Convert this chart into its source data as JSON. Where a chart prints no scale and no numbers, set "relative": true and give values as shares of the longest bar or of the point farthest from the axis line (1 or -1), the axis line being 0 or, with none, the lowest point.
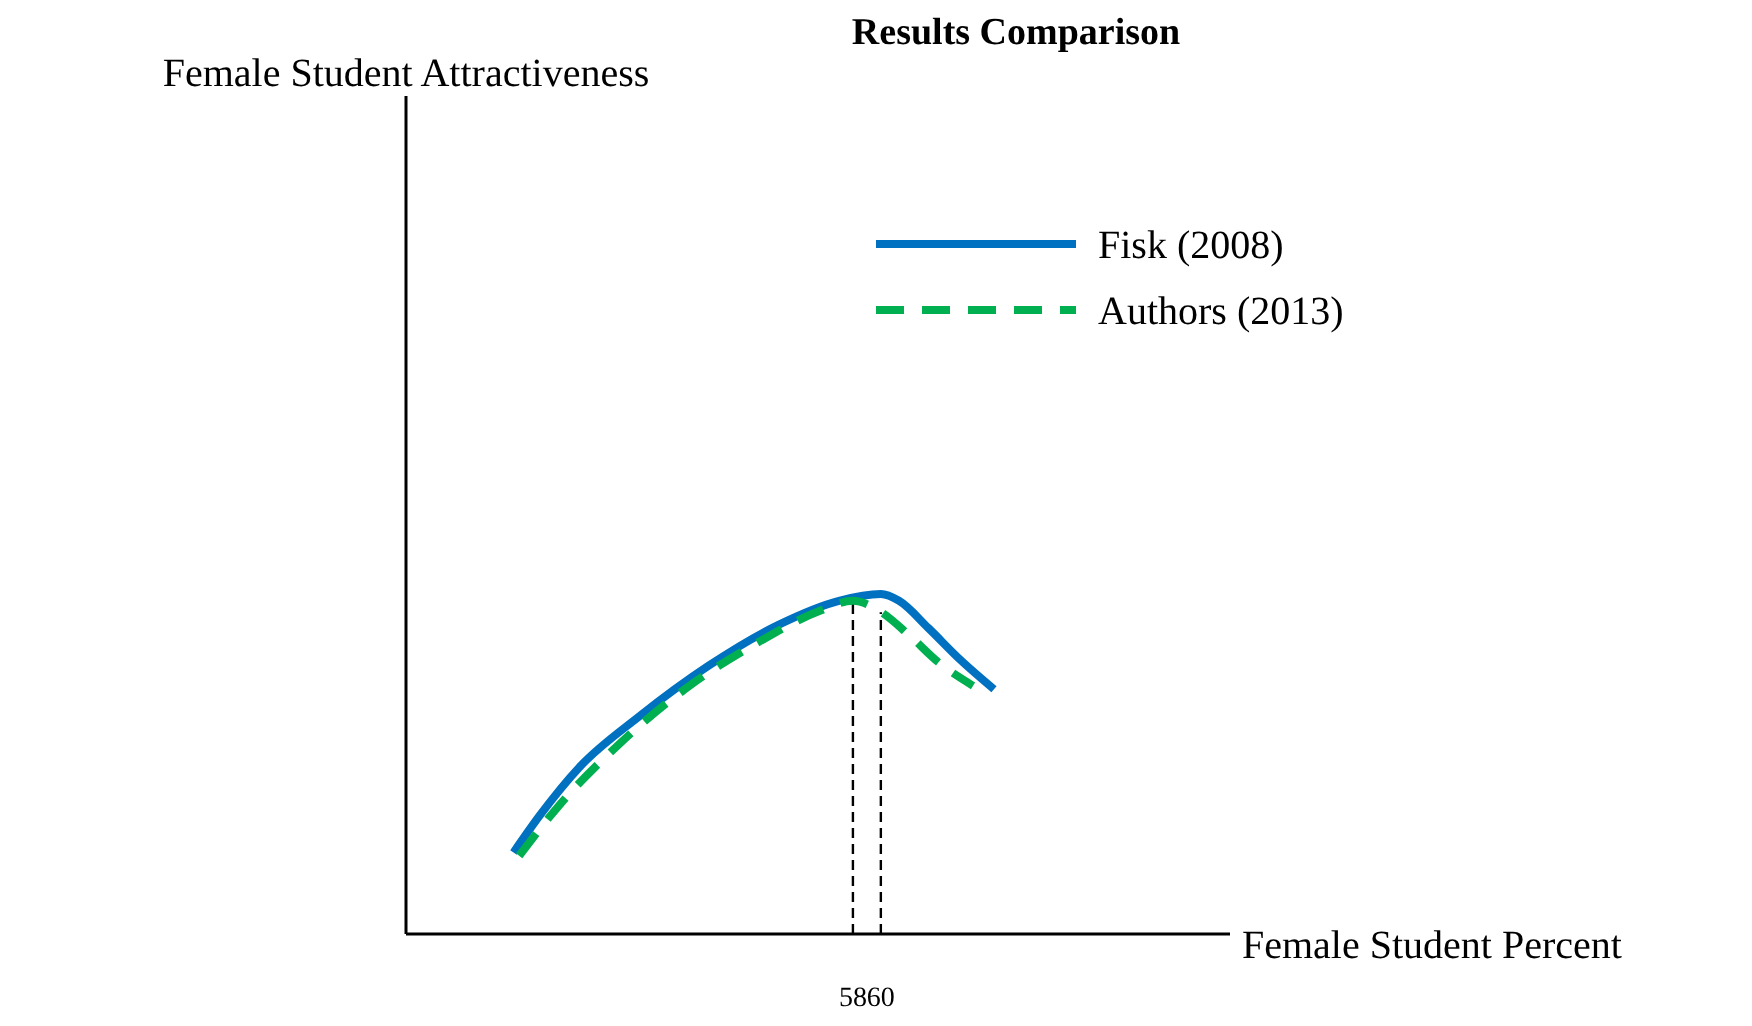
{
  "chart_data": {
    "type": "line",
    "title": "Results Comparison",
    "xlabel": "Female Student Percent",
    "annotations": [
      "Female Student Attractiveness"
    ],
    "relative": true,
    "xlim": [
      26,
      85
    ],
    "xticks": [
      58,
      60
    ],
    "legend": "top right",
    "grid": false,
    "series": [
      {
        "name": "Fisk (2008)",
        "color": "#0070c0",
        "line_style": "solid",
        "x": [
          33.7,
          35.6,
          38.4,
          42.7,
          47.7,
          52.7,
          57,
          60,
          61.3,
          63.4,
          65.6,
          68.1
        ],
        "values": [
          0.24,
          0.35,
          0.49,
          0.64,
          0.79,
          0.91,
          0.98,
          1.0,
          0.98,
          0.9,
          0.81,
          0.72
        ]
      },
      {
        "name": "Authors (2013)",
        "color": "#00b050",
        "line_style": "dashed",
        "x": [
          34.1,
          37,
          41.3,
          46.3,
          51.3,
          55.6,
          58,
          59.9,
          62,
          64.1,
          66.6
        ],
        "values": [
          0.23,
          0.38,
          0.56,
          0.73,
          0.86,
          0.95,
          0.98,
          0.95,
          0.88,
          0.8,
          0.73
        ]
      }
    ],
    "ref_lines": [
      {
        "axis": "x",
        "value": 58,
        "label": null,
        "color": "#000000",
        "line_style": "dashed"
      },
      {
        "axis": "x",
        "value": 60,
        "label": null,
        "color": "#000000",
        "line_style": "dashed"
      }
    ]
  }
}
